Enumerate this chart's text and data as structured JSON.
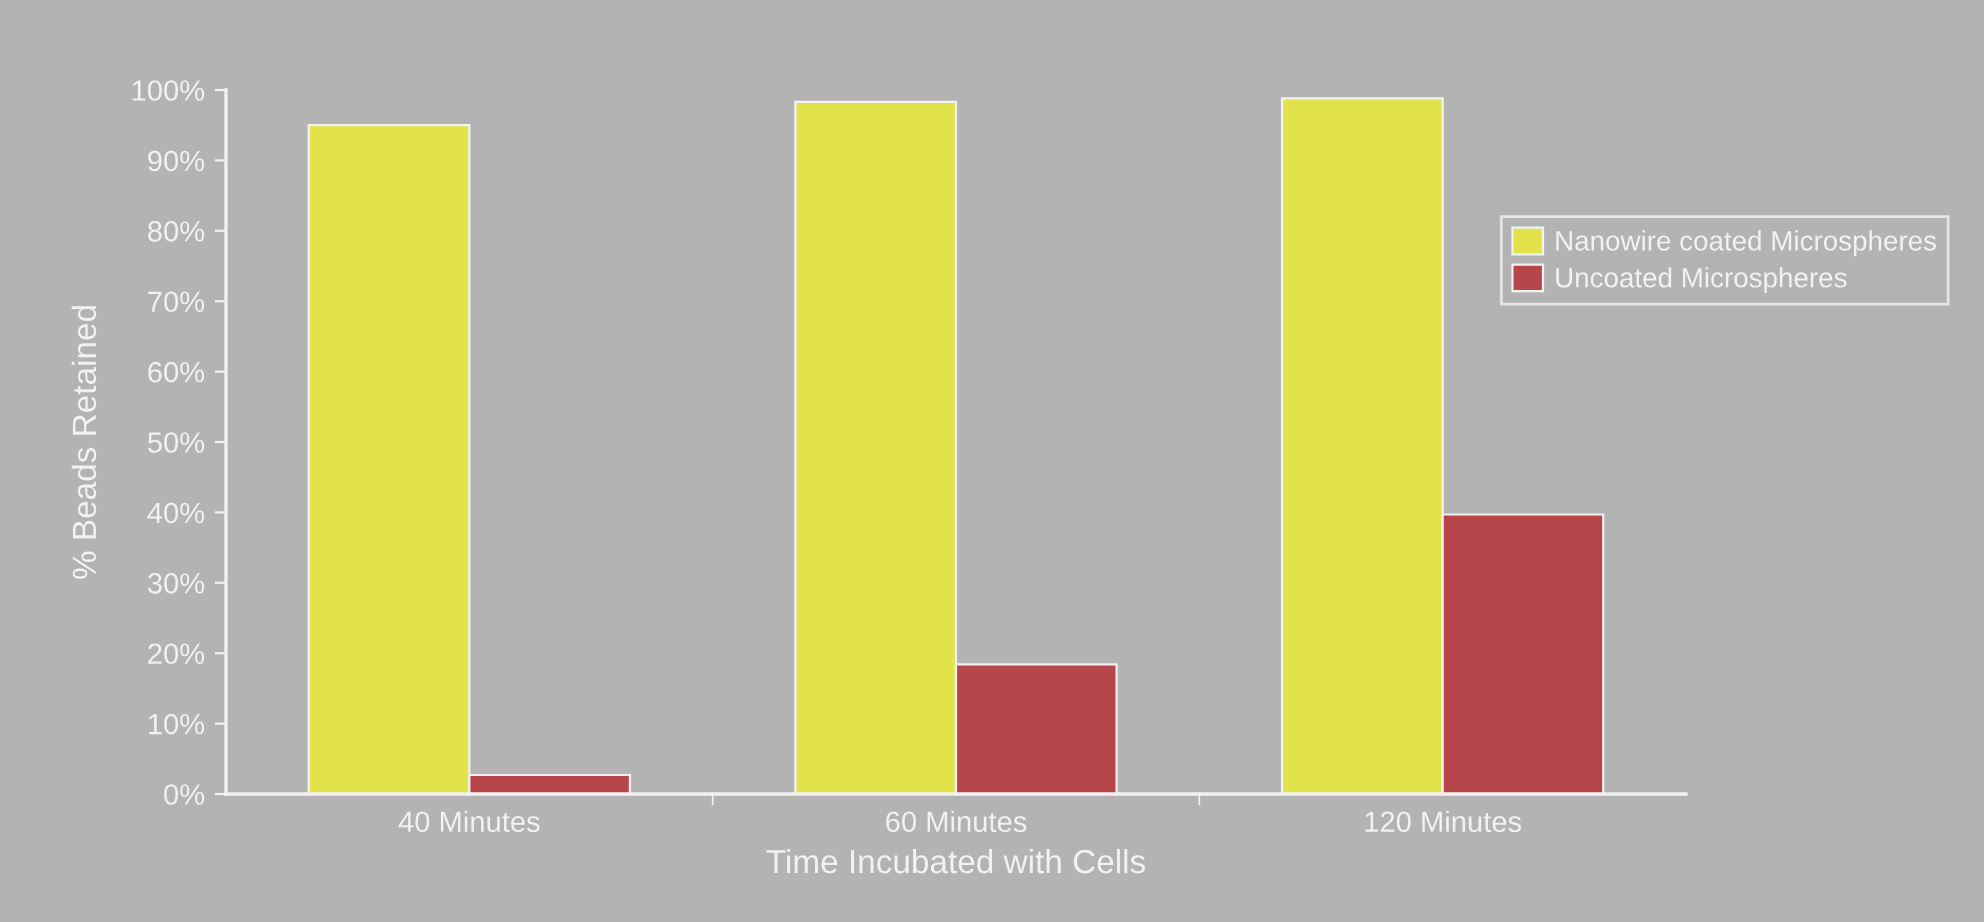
{
  "chart_data": {
    "type": "bar",
    "xlabel": "Time Incubated with Cells",
    "ylabel": "% Beads Retained",
    "categories": [
      "40 Minutes",
      "60 Minutes",
      "120 Minutes"
    ],
    "series": [
      {
        "name": "Nanowire coated Microspheres",
        "color": "#e2e34b",
        "values": [
          95.0,
          98.3,
          98.8
        ]
      },
      {
        "name": "Uncoated Microspheres",
        "color": "#b7464a",
        "values": [
          2.7,
          18.4,
          39.7
        ]
      }
    ],
    "ylim": [
      0,
      100
    ],
    "yticks": [
      {
        "value": 0,
        "label": "0%"
      },
      {
        "value": 10,
        "label": "10%"
      },
      {
        "value": 20,
        "label": "20%"
      },
      {
        "value": 30,
        "label": "30%"
      },
      {
        "value": 40,
        "label": "40%"
      },
      {
        "value": 50,
        "label": "50%"
      },
      {
        "value": 60,
        "label": "60%"
      },
      {
        "value": 70,
        "label": "70%"
      },
      {
        "value": 80,
        "label": "80%"
      },
      {
        "value": 90,
        "label": "90%"
      },
      {
        "value": 100,
        "label": "100%"
      }
    ],
    "grid": false,
    "legend": "top right"
  }
}
